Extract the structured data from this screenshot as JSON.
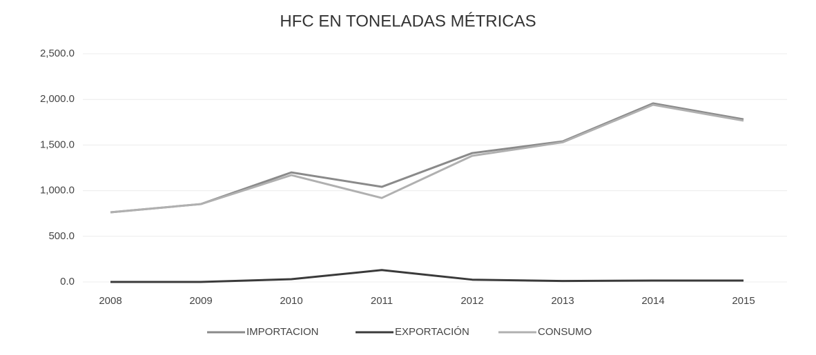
{
  "chart_data": {
    "type": "line",
    "title": "HFC EN TONELADAS MÉTRICAS",
    "categories": [
      "2008",
      "2009",
      "2010",
      "2011",
      "2012",
      "2013",
      "2014",
      "2015"
    ],
    "series": [
      {
        "name": "IMPORTACION",
        "color": "#8a8a8a",
        "values": [
          763,
          853,
          1200,
          1042,
          1412,
          1540,
          1956,
          1782
        ]
      },
      {
        "name": "EXPORTACIÓN",
        "color": "#3a3a3a",
        "values": [
          0,
          0,
          30,
          130,
          25,
          10,
          15,
          15
        ]
      },
      {
        "name": "CONSUMO",
        "color": "#b0b0b0",
        "values": [
          763,
          853,
          1170,
          920,
          1382,
          1530,
          1941,
          1767
        ]
      }
    ],
    "ylim": [
      0,
      2500
    ],
    "yticks": [
      {
        "value": 0,
        "label": "0.0"
      },
      {
        "value": 500,
        "label": "500.0"
      },
      {
        "value": 1000,
        "label": "1,000.0"
      },
      {
        "value": 1500,
        "label": "1,500.0"
      },
      {
        "value": 2000,
        "label": "2,000.0"
      },
      {
        "value": 2500,
        "label": "2,500.0"
      }
    ],
    "grid": true,
    "legend": "bottom"
  }
}
